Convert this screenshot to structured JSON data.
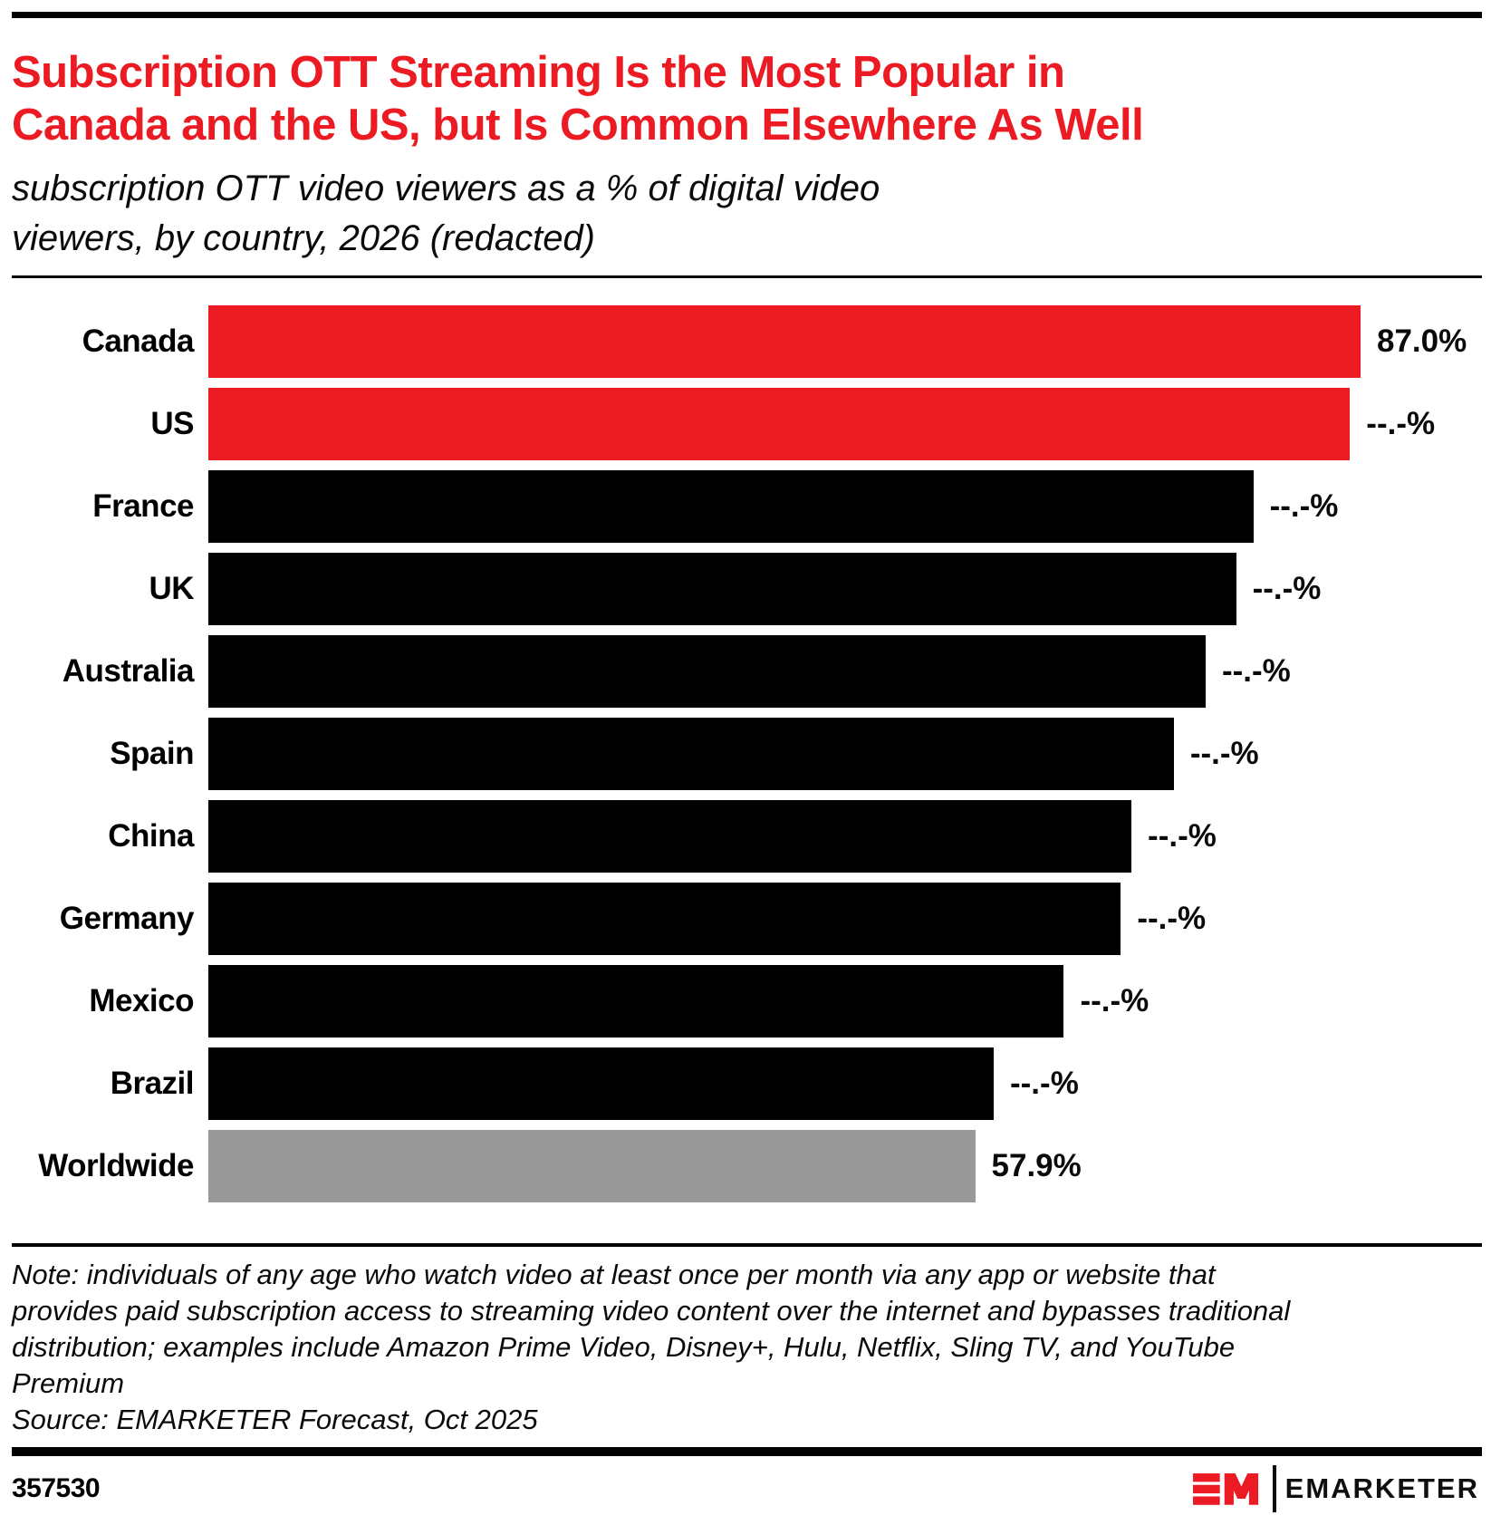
{
  "header": {
    "title_lines": [
      "Subscription OTT Streaming Is the Most Popular in",
      "Canada and the US, but Is Common Elsewhere As Well"
    ],
    "subtitle_lines": [
      "subscription OTT video viewers as a % of digital video",
      "viewers, by country, 2026 (redacted)"
    ]
  },
  "chart_data": {
    "type": "bar",
    "orientation": "horizontal",
    "title": "Subscription OTT Streaming Is the Most Popular in Canada and the US, but Is Common Elsewhere As Well",
    "subtitle": "subscription OTT video viewers as a % of digital video viewers, by country, 2026 (redacted)",
    "unit": "%",
    "xlim": [
      0,
      87.0
    ],
    "grid": false,
    "legend": "none",
    "categories": [
      "Canada",
      "US",
      "France",
      "UK",
      "Australia",
      "Spain",
      "China",
      "Germany",
      "Mexico",
      "Brazil",
      "Worldwide"
    ],
    "values_display": [
      "87.0%",
      "--.-%",
      "--.-%",
      "--.-%",
      "--.-%",
      "--.-%",
      "--.-%",
      "--.-%",
      "--.-%",
      "--.-%",
      "57.9%"
    ],
    "values_known": {
      "Canada": 87.0,
      "Worldwide": 57.9
    },
    "bar_lengths_est_pct": [
      87.0,
      86.2,
      78.9,
      77.6,
      75.3,
      72.9,
      69.7,
      68.9,
      64.6,
      59.3,
      57.9
    ],
    "colors": [
      "#EC1B23",
      "#EC1B23",
      "#000000",
      "#000000",
      "#000000",
      "#000000",
      "#000000",
      "#000000",
      "#000000",
      "#000000",
      "#999999"
    ]
  },
  "colors": {
    "accent_red": "#EC1B23",
    "bar_black": "#000000",
    "bar_gray": "#999999"
  },
  "footer": {
    "note_lines": [
      "Note: individuals of any age who watch video at least once per month via any app or website that",
      "provides paid subscription access to streaming video content over the internet and bypasses traditional",
      "distribution; examples include Amazon Prime Video, Disney+, Hulu, Netflix, Sling TV, and YouTube",
      "Premium"
    ],
    "source": "Source: EMARKETER Forecast, Oct 2025",
    "chart_id": "357530",
    "logo": {
      "monogram": "EM",
      "wordmark": "EMARKETER"
    }
  }
}
